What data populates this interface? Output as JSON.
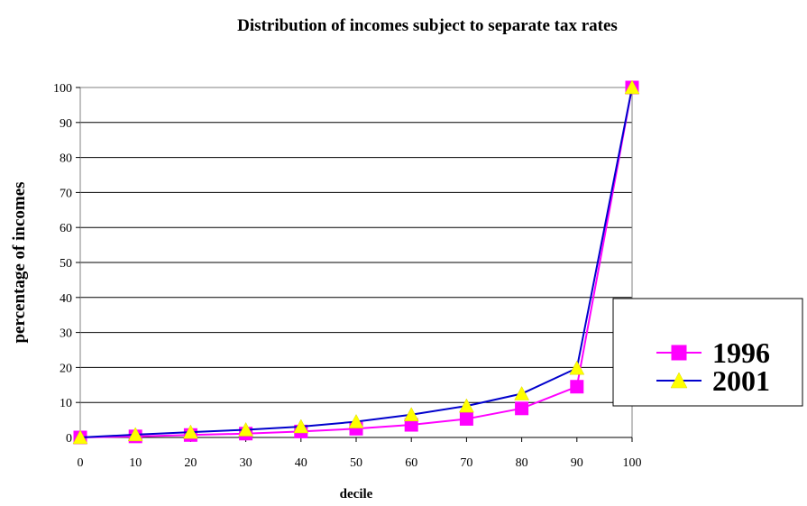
{
  "chart_data": {
    "type": "line",
    "title": "Distribution of incomes subject to separate tax rates",
    "xlabel": "decile",
    "ylabel": "percentage of incomes",
    "x": [
      0,
      10,
      20,
      30,
      40,
      50,
      60,
      70,
      80,
      90,
      100
    ],
    "xlim": [
      0,
      100
    ],
    "ylim": [
      0,
      100
    ],
    "x_ticks": [
      "0",
      "10",
      "20",
      "30",
      "40",
      "50",
      "60",
      "70",
      "80",
      "90",
      "100"
    ],
    "y_ticks": [
      "0",
      "10",
      "20",
      "30",
      "40",
      "50",
      "60",
      "70",
      "80",
      "90",
      "100"
    ],
    "grid": "horizontal",
    "legend_position": "right",
    "series": [
      {
        "name": "1996",
        "color": "#ff00ff",
        "marker": "square",
        "marker_color": "#ff00ff",
        "values": [
          0,
          0.3,
          0.7,
          1.1,
          1.7,
          2.5,
          3.6,
          5.3,
          8.3,
          14.5,
          100
        ]
      },
      {
        "name": "2001",
        "color": "#0000cc",
        "marker": "triangle",
        "marker_color": "#ffff00",
        "values": [
          0,
          0.8,
          1.5,
          2.2,
          3.1,
          4.5,
          6.5,
          9.0,
          12.5,
          19.8,
          100
        ]
      }
    ]
  }
}
